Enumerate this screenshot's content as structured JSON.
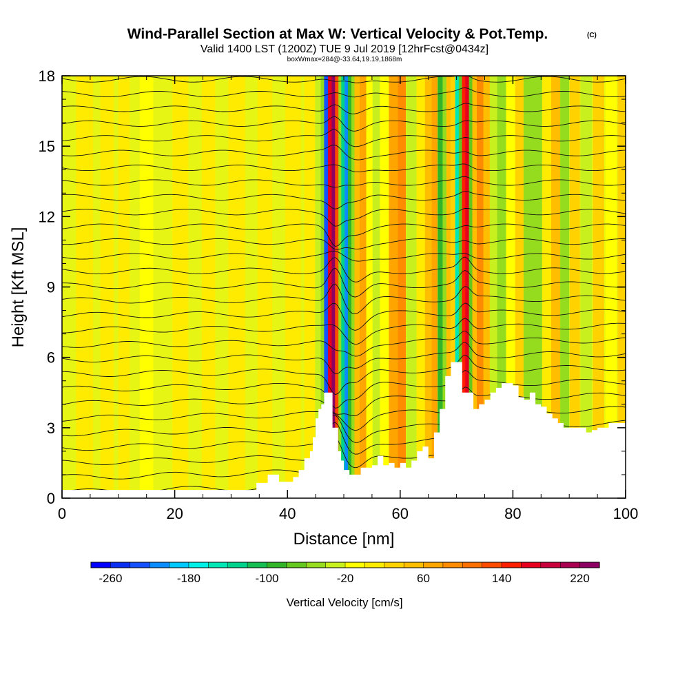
{
  "chart_data": {
    "type": "heatmap",
    "title": "Wind-Parallel Section at Max W: Vertical Velocity & Pot.Temp.",
    "title_mark": "(C)",
    "subtitle": "Valid 1400 LST (1200Z) TUE 9 Jul 2019 [12hrFcst@0434z]",
    "subtitle2": "boxWmax=284@-33.64,19.19,1868m",
    "xlabel": "Distance [nm]",
    "ylabel": "Height [Kft MSL]",
    "xlim": [
      0,
      100
    ],
    "ylim": [
      0,
      18
    ],
    "x_ticks": [
      0,
      20,
      40,
      60,
      80,
      100
    ],
    "y_ticks": [
      0,
      3,
      6,
      9,
      12,
      15,
      18
    ],
    "colorbar": {
      "label": "Vertical Velocity [cm/s]",
      "tick_labels": [
        -260,
        -180,
        -100,
        -20,
        60,
        140,
        220
      ],
      "min": -280,
      "max": 240,
      "step": 20,
      "colors": [
        "#0000ff",
        "#0a2df0",
        "#1450ff",
        "#0a8cff",
        "#00c8ff",
        "#00f0e6",
        "#00e6b4",
        "#00d28c",
        "#14be50",
        "#32b428",
        "#64c81e",
        "#96dc1e",
        "#c8f01e",
        "#ffff00",
        "#ffeb00",
        "#ffd200",
        "#ffbe00",
        "#ffa500",
        "#ff8c00",
        "#ff6e00",
        "#ff4b00",
        "#ff1e00",
        "#e6001e",
        "#c8003c",
        "#aa0050",
        "#8c0064"
      ]
    },
    "terrain_kft": [
      [
        0,
        0.35
      ],
      [
        13,
        0.35
      ],
      [
        15,
        0.35
      ],
      [
        17,
        0.35
      ],
      [
        26,
        0.35
      ],
      [
        30,
        0.35
      ],
      [
        32,
        0.35
      ],
      [
        34,
        0.35
      ],
      [
        34.5,
        0.65
      ],
      [
        36,
        0.65
      ],
      [
        36.5,
        1.0
      ],
      [
        38,
        1.0
      ],
      [
        38.5,
        0.7
      ],
      [
        40,
        0.7
      ],
      [
        41,
        0.9
      ],
      [
        42,
        1.2
      ],
      [
        43,
        1.7
      ],
      [
        44,
        2.0
      ],
      [
        44.5,
        2.6
      ],
      [
        45,
        3.4
      ],
      [
        45.5,
        3.8
      ],
      [
        46,
        4.0
      ],
      [
        46.5,
        4.5
      ],
      [
        47.5,
        4.5
      ],
      [
        48,
        3.0
      ],
      [
        48.7,
        3.0
      ],
      [
        49,
        2.0
      ],
      [
        49.5,
        1.6
      ],
      [
        50,
        1.2
      ],
      [
        51,
        1.0
      ],
      [
        52,
        1.0
      ],
      [
        53,
        1.3
      ],
      [
        55,
        1.4
      ],
      [
        56,
        1.8
      ],
      [
        57,
        1.4
      ],
      [
        58,
        1.5
      ],
      [
        59,
        1.3
      ],
      [
        60,
        1.5
      ],
      [
        61,
        1.3
      ],
      [
        62,
        1.6
      ],
      [
        63,
        2.0
      ],
      [
        64,
        2.2
      ],
      [
        65,
        1.7
      ],
      [
        66,
        2.8
      ],
      [
        67,
        3.8
      ],
      [
        68,
        5.2
      ],
      [
        69,
        5.8
      ],
      [
        70.5,
        5.8
      ],
      [
        71,
        4.5
      ],
      [
        72.5,
        4.5
      ],
      [
        73,
        3.8
      ],
      [
        74,
        4.0
      ],
      [
        75,
        4.2
      ],
      [
        76,
        4.5
      ],
      [
        77,
        4.7
      ],
      [
        78,
        4.9
      ],
      [
        79,
        4.9
      ],
      [
        80,
        4.8
      ],
      [
        81,
        4.3
      ],
      [
        82,
        4.2
      ],
      [
        83,
        4.5
      ],
      [
        84,
        4.0
      ],
      [
        85,
        3.9
      ],
      [
        86,
        3.6
      ],
      [
        87,
        3.4
      ],
      [
        88,
        3.2
      ],
      [
        89,
        3.0
      ],
      [
        90,
        3.0
      ],
      [
        91,
        3.0
      ],
      [
        92,
        3.0
      ],
      [
        93,
        2.8
      ],
      [
        94,
        2.9
      ],
      [
        95,
        3.0
      ],
      [
        96,
        3.0
      ],
      [
        97,
        3.2
      ],
      [
        98,
        3.2
      ],
      [
        100,
        3.2
      ]
    ],
    "theta_isentropes_K": [
      300,
      302,
      304,
      306,
      308,
      310,
      312,
      314,
      316,
      318,
      320,
      322,
      324,
      326,
      328,
      330,
      332,
      334,
      336,
      338,
      340,
      342,
      344,
      346,
      348,
      350,
      352,
      354,
      356
    ]
  }
}
